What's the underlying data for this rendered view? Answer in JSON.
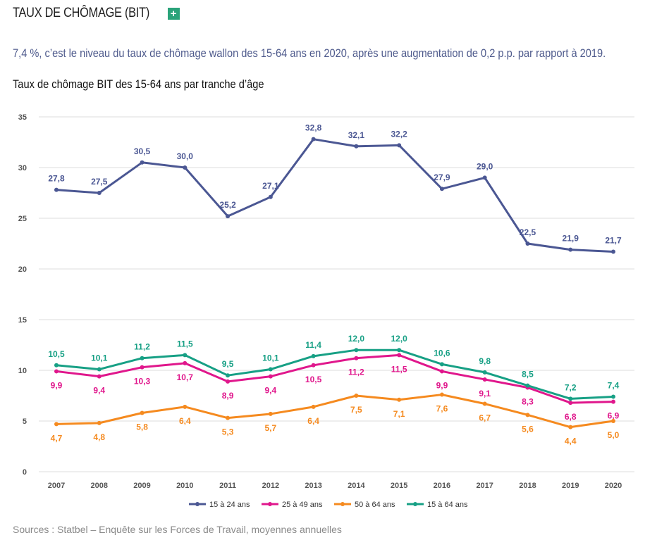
{
  "header": {
    "title": "TAUX DE CHÔMAGE (BIT)",
    "expand_label": "+"
  },
  "lead_text": "7,4 %, c’est le niveau du taux de chômage wallon des 15-64 ans en 2020, après une augmentation de 0,2 p.p. par rapport à 2019.",
  "chart_subtitle": "Taux de chômage BIT des 15-64 ans par tranche d’âge",
  "source_text": "Sources : Statbel – Enquête sur les Forces de Travail, moyennes annuelles",
  "colors": {
    "accent": "#2aa37a",
    "lead_text": "#4e5a8c"
  },
  "chart_data": {
    "type": "line",
    "x": [
      "2007",
      "2008",
      "2009",
      "2010",
      "2011",
      "2012",
      "2013",
      "2014",
      "2015",
      "2016",
      "2017",
      "2018",
      "2019",
      "2020"
    ],
    "ylim": [
      0,
      35
    ],
    "yticks": [
      0,
      5,
      10,
      15,
      20,
      25,
      30,
      35
    ],
    "grid": true,
    "legend_position": "bottom",
    "decimal_separator": ",",
    "series": [
      {
        "name": "15 à 24 ans",
        "color": "#4b5793",
        "label_color": "#4b5793",
        "label_position": "above",
        "values": [
          27.8,
          27.5,
          30.5,
          30.0,
          25.2,
          27.1,
          32.8,
          32.1,
          32.2,
          27.9,
          29.0,
          22.5,
          21.9,
          21.7
        ]
      },
      {
        "name": "25 à 49 ans",
        "color": "#e0178c",
        "label_color": "#e0178c",
        "label_position": "below",
        "values": [
          9.9,
          9.4,
          10.3,
          10.7,
          8.9,
          9.4,
          10.5,
          11.2,
          11.5,
          9.9,
          9.1,
          8.3,
          6.8,
          6.9
        ]
      },
      {
        "name": "50 à 64 ans",
        "color": "#f58a1f",
        "label_color": "#f58a1f",
        "label_position": "below",
        "values": [
          4.7,
          4.8,
          5.8,
          6.4,
          5.3,
          5.7,
          6.4,
          7.5,
          7.1,
          7.6,
          6.7,
          5.6,
          4.4,
          5.0
        ]
      },
      {
        "name": "15 à 64 ans",
        "color": "#17a085",
        "label_color": "#17a085",
        "label_position": "above",
        "values": [
          10.5,
          10.1,
          11.2,
          11.5,
          9.5,
          10.1,
          11.4,
          12.0,
          12.0,
          10.6,
          9.8,
          8.5,
          7.2,
          7.4
        ]
      }
    ]
  }
}
